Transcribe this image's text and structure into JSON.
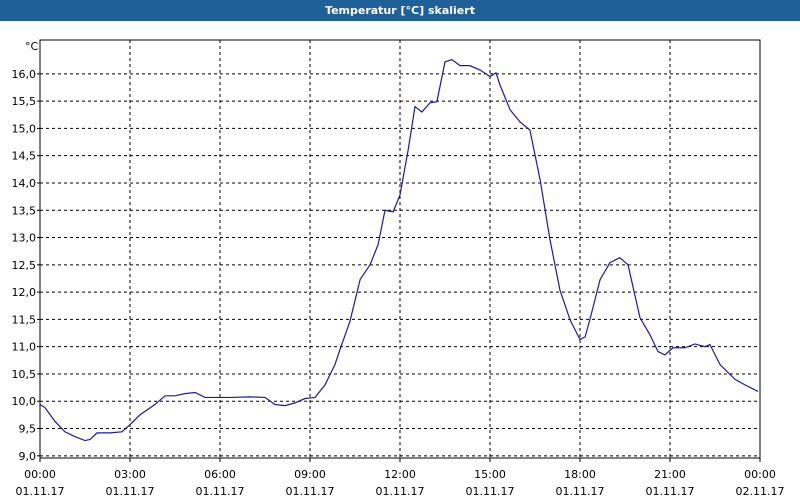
{
  "chart_data": {
    "type": "line",
    "title": "Temperatur [°C] skaliert",
    "y_unit": "°C",
    "xlim": [
      0,
      24
    ],
    "xticks": [
      {
        "value": 0,
        "label": "00:00"
      },
      {
        "value": 3,
        "label": "03:00"
      },
      {
        "value": 6,
        "label": "06:00"
      },
      {
        "value": 9,
        "label": "09:00"
      },
      {
        "value": 12,
        "label": "12:00"
      },
      {
        "value": 15,
        "label": "15:00"
      },
      {
        "value": 18,
        "label": "18:00"
      },
      {
        "value": 21,
        "label": "21:00"
      },
      {
        "value": 24,
        "label": "00:00"
      }
    ],
    "xtick_dates": [
      "01.11.17",
      "01.11.17",
      "01.11.17",
      "01.11.17",
      "01.11.17",
      "01.11.17",
      "01.11.17",
      "01.11.17",
      "02.11.17"
    ],
    "ylim": [
      8.96,
      16.62
    ],
    "yticks": [
      {
        "value": 9,
        "label": "9,0"
      },
      {
        "value": 9.5,
        "label": "9,5"
      },
      {
        "value": 10,
        "label": "10,0"
      },
      {
        "value": 10.5,
        "label": "10,5"
      },
      {
        "value": 11,
        "label": "11,0"
      },
      {
        "value": 11.5,
        "label": "11,5"
      },
      {
        "value": 12,
        "label": "12,0"
      },
      {
        "value": 12.5,
        "label": "12,5"
      },
      {
        "value": 13,
        "label": "13,0"
      },
      {
        "value": 13.5,
        "label": "13,5"
      },
      {
        "value": 14,
        "label": "14,0"
      },
      {
        "value": 14.5,
        "label": "14,5"
      },
      {
        "value": 15,
        "label": "15,0"
      },
      {
        "value": 15.5,
        "label": "15,5"
      },
      {
        "value": 16,
        "label": "16,0"
      }
    ],
    "grid": true,
    "series": [
      {
        "color": "#1a1aa8",
        "x": [
          0,
          0.17,
          0.5,
          0.83,
          1.17,
          1.5,
          1.67,
          1.9,
          2.33,
          2.73,
          3.0,
          3.33,
          3.83,
          4.17,
          4.5,
          4.83,
          5.17,
          5.5,
          5.83,
          6.33,
          7.0,
          7.5,
          7.83,
          8.17,
          8.5,
          8.83,
          9.17,
          9.5,
          9.83,
          10.0,
          10.33,
          10.67,
          11.0,
          11.27,
          11.5,
          11.77,
          12.0,
          12.27,
          12.5,
          12.73,
          13.0,
          13.23,
          13.5,
          13.73,
          14.0,
          14.33,
          14.67,
          15.0,
          15.2,
          15.33,
          15.67,
          16.0,
          16.33,
          16.67,
          17.0,
          17.33,
          17.67,
          18.0,
          18.17,
          18.33,
          18.67,
          19.0,
          19.33,
          19.6,
          20.0,
          20.33,
          20.6,
          20.83,
          21.1,
          21.5,
          21.83,
          22.17,
          22.33,
          22.67,
          23.17,
          23.5,
          23.93
        ],
        "values": [
          9.94,
          9.88,
          9.63,
          9.44,
          9.35,
          9.28,
          9.3,
          9.42,
          9.42,
          9.44,
          9.57,
          9.75,
          9.94,
          10.1,
          10.1,
          10.14,
          10.16,
          10.07,
          10.07,
          10.07,
          10.08,
          10.07,
          9.94,
          9.92,
          9.97,
          10.05,
          10.07,
          10.3,
          10.67,
          10.95,
          11.46,
          12.23,
          12.5,
          12.87,
          13.5,
          13.47,
          13.78,
          14.6,
          15.4,
          15.3,
          15.47,
          15.49,
          16.22,
          16.26,
          16.15,
          16.15,
          16.07,
          15.95,
          16.02,
          15.8,
          15.34,
          15.12,
          14.97,
          14.06,
          12.96,
          12.04,
          11.49,
          11.13,
          11.18,
          11.5,
          12.23,
          12.54,
          12.63,
          12.5,
          11.53,
          11.22,
          10.91,
          10.85,
          10.98,
          10.98,
          11.05,
          11.0,
          11.04,
          10.67,
          10.4,
          10.3,
          10.18
        ]
      }
    ]
  }
}
